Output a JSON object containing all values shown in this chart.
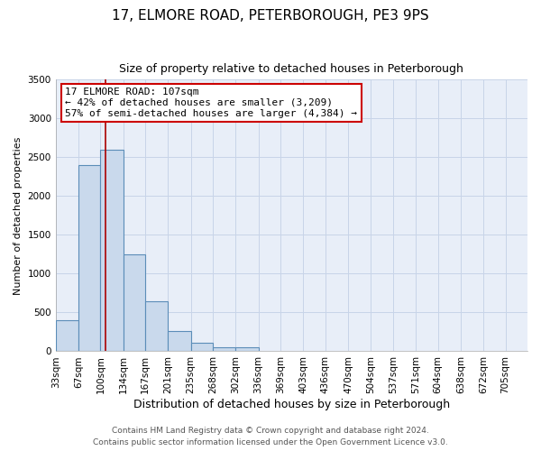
{
  "title": "17, ELMORE ROAD, PETERBOROUGH, PE3 9PS",
  "subtitle": "Size of property relative to detached houses in Peterborough",
  "xlabel": "Distribution of detached houses by size in Peterborough",
  "ylabel": "Number of detached properties",
  "bar_values": [
    400,
    2400,
    2600,
    1250,
    650,
    260,
    110,
    50,
    50,
    0,
    0,
    0,
    0,
    0,
    0,
    0,
    0,
    0,
    0,
    0,
    0
  ],
  "bar_labels": [
    "33sqm",
    "67sqm",
    "100sqm",
    "134sqm",
    "167sqm",
    "201sqm",
    "235sqm",
    "268sqm",
    "302sqm",
    "336sqm",
    "369sqm",
    "403sqm",
    "436sqm",
    "470sqm",
    "504sqm",
    "537sqm",
    "571sqm",
    "604sqm",
    "638sqm",
    "672sqm",
    "705sqm"
  ],
  "bar_color": "#c9d9ec",
  "bar_edge_color": "#5b8db8",
  "bar_edge_width": 0.8,
  "vline_x": 107,
  "vline_color": "#aa0000",
  "ylim": [
    0,
    3500
  ],
  "annotation_title": "17 ELMORE ROAD: 107sqm",
  "annotation_line1": "← 42% of detached houses are smaller (3,209)",
  "annotation_line2": "57% of semi-detached houses are larger (4,384) →",
  "annotation_box_color": "#ffffff",
  "annotation_box_edge": "#cc0000",
  "grid_color": "#c8d4e8",
  "bg_color": "#e8eef8",
  "footer1": "Contains HM Land Registry data © Crown copyright and database right 2024.",
  "footer2": "Contains public sector information licensed under the Open Government Licence v3.0.",
  "title_fontsize": 11,
  "subtitle_fontsize": 9,
  "ylabel_fontsize": 8,
  "xlabel_fontsize": 9,
  "tick_fontsize": 7.5,
  "footer_fontsize": 6.5,
  "annotation_fontsize": 8
}
